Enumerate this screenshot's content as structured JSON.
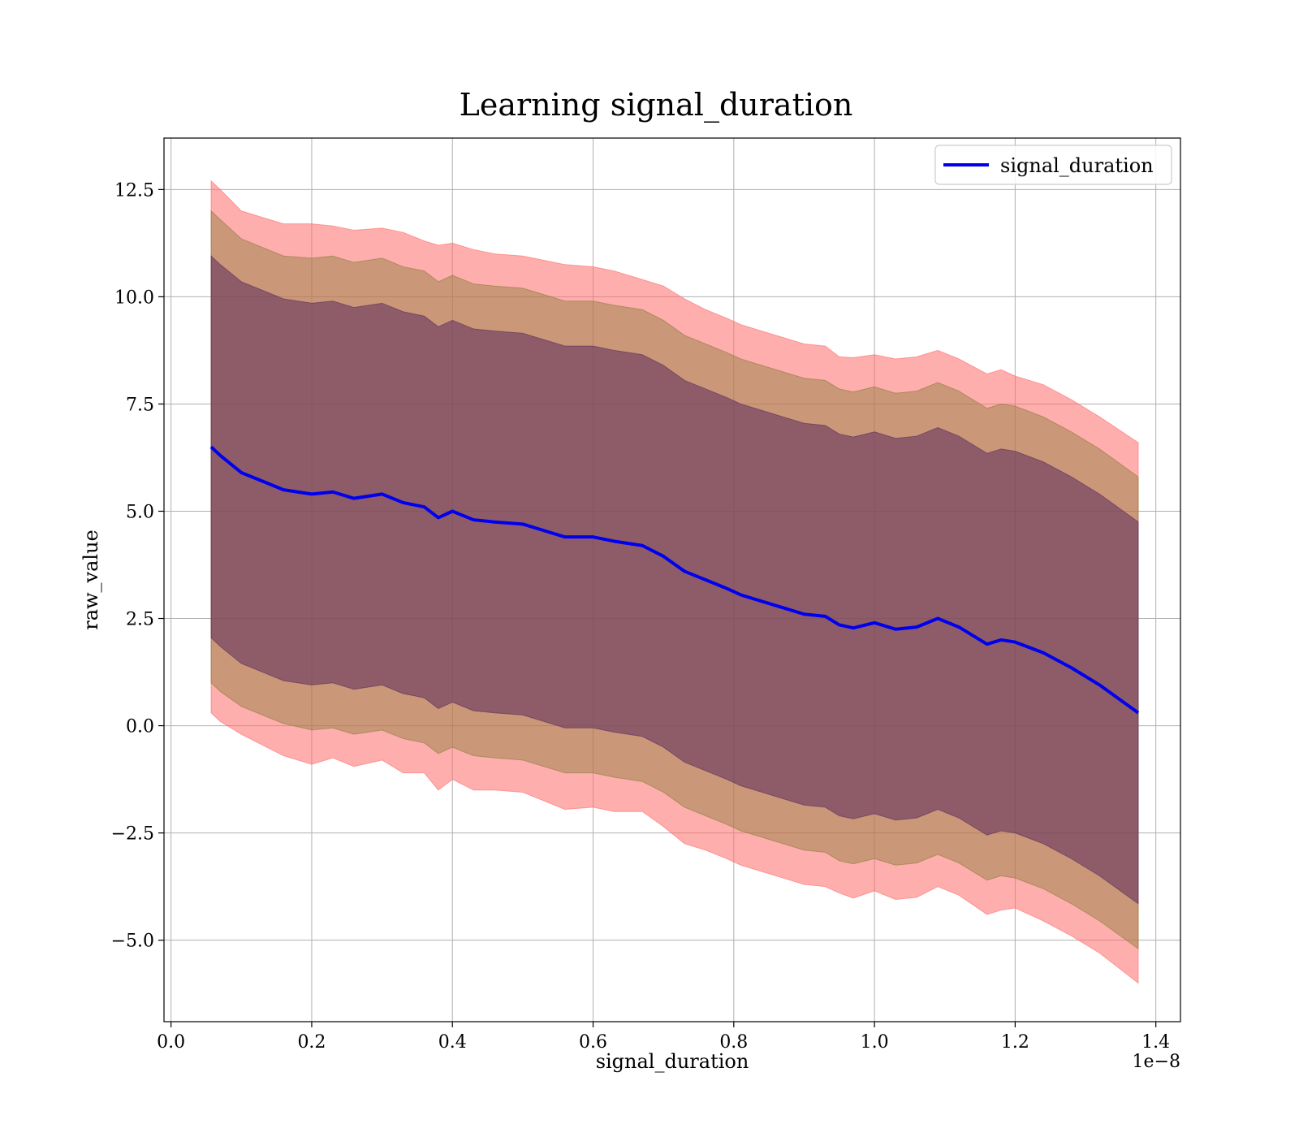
{
  "chart_data": {
    "type": "line",
    "title": "Learning signal_duration",
    "xlabel": "signal_duration",
    "ylabel": "raw_value",
    "x_offset_label": "1e−8",
    "xlim": [
      -0.01,
      1.435
    ],
    "ylim": [
      -6.9,
      13.7
    ],
    "xticks": [
      0.0,
      0.2,
      0.4,
      0.6,
      0.8,
      1.0,
      1.2,
      1.4
    ],
    "xtick_labels": [
      "0.0",
      "0.2",
      "0.4",
      "0.6",
      "0.8",
      "1.0",
      "1.2",
      "1.4"
    ],
    "yticks": [
      -5.0,
      -2.5,
      0.0,
      2.5,
      5.0,
      7.5,
      10.0,
      12.5
    ],
    "ytick_labels": [
      "−5.0",
      "−2.5",
      "0.0",
      "2.5",
      "5.0",
      "7.5",
      "10.0",
      "12.5"
    ],
    "grid": true,
    "legend_position": "top-right",
    "colors": {
      "line": "#0000ee",
      "band_outer": "#ff6b6b",
      "band_middle": "#8b7d3a",
      "band_inner": "#5c2c5c"
    },
    "series": [
      {
        "name": "signal_duration",
        "x": [
          0.057,
          0.07,
          0.1,
          0.13,
          0.16,
          0.2,
          0.23,
          0.26,
          0.3,
          0.33,
          0.36,
          0.38,
          0.4,
          0.43,
          0.46,
          0.5,
          0.53,
          0.56,
          0.6,
          0.63,
          0.67,
          0.7,
          0.73,
          0.76,
          0.79,
          0.81,
          0.84,
          0.87,
          0.9,
          0.93,
          0.95,
          0.97,
          1.0,
          1.03,
          1.06,
          1.09,
          1.12,
          1.16,
          1.18,
          1.2,
          1.24,
          1.28,
          1.32,
          1.375
        ],
        "y": [
          6.5,
          6.3,
          5.9,
          5.7,
          5.5,
          5.4,
          5.45,
          5.3,
          5.4,
          5.2,
          5.1,
          4.85,
          5.0,
          4.8,
          4.75,
          4.7,
          4.55,
          4.4,
          4.4,
          4.3,
          4.2,
          3.95,
          3.6,
          3.4,
          3.2,
          3.05,
          2.9,
          2.75,
          2.6,
          2.55,
          2.35,
          2.28,
          2.4,
          2.25,
          2.3,
          2.5,
          2.3,
          1.9,
          2.0,
          1.95,
          1.7,
          1.35,
          0.95,
          0.3
        ],
        "bands": [
          {
            "level": "outer",
            "half_width": [
              6.2,
              6.2,
              6.1,
              6.15,
              6.2,
              6.3,
              6.2,
              6.25,
              6.2,
              6.3,
              6.2,
              6.35,
              6.25,
              6.3,
              6.25,
              6.25,
              6.3,
              6.35,
              6.3,
              6.3,
              6.2,
              6.3,
              6.35,
              6.3,
              6.3,
              6.3,
              6.3,
              6.3,
              6.3,
              6.3,
              6.25,
              6.3,
              6.25,
              6.3,
              6.3,
              6.25,
              6.25,
              6.3,
              6.3,
              6.2,
              6.25,
              6.25,
              6.25,
              6.3
            ]
          },
          {
            "level": "middle",
            "half_width": [
              5.5,
              5.5,
              5.45,
              5.45,
              5.45,
              5.5,
              5.5,
              5.5,
              5.5,
              5.5,
              5.5,
              5.5,
              5.5,
              5.5,
              5.5,
              5.5,
              5.5,
              5.5,
              5.5,
              5.5,
              5.5,
              5.5,
              5.5,
              5.5,
              5.5,
              5.5,
              5.5,
              5.5,
              5.5,
              5.5,
              5.5,
              5.5,
              5.5,
              5.5,
              5.5,
              5.5,
              5.5,
              5.5,
              5.5,
              5.5,
              5.5,
              5.5,
              5.5,
              5.5
            ]
          },
          {
            "level": "inner",
            "half_width": [
              4.45,
              4.45,
              4.45,
              4.45,
              4.45,
              4.45,
              4.45,
              4.45,
              4.45,
              4.45,
              4.45,
              4.45,
              4.45,
              4.45,
              4.45,
              4.45,
              4.45,
              4.45,
              4.45,
              4.45,
              4.45,
              4.45,
              4.45,
              4.45,
              4.45,
              4.45,
              4.45,
              4.45,
              4.45,
              4.45,
              4.45,
              4.45,
              4.45,
              4.45,
              4.45,
              4.45,
              4.45,
              4.45,
              4.45,
              4.45,
              4.45,
              4.45,
              4.45,
              4.45
            ]
          }
        ]
      }
    ]
  }
}
